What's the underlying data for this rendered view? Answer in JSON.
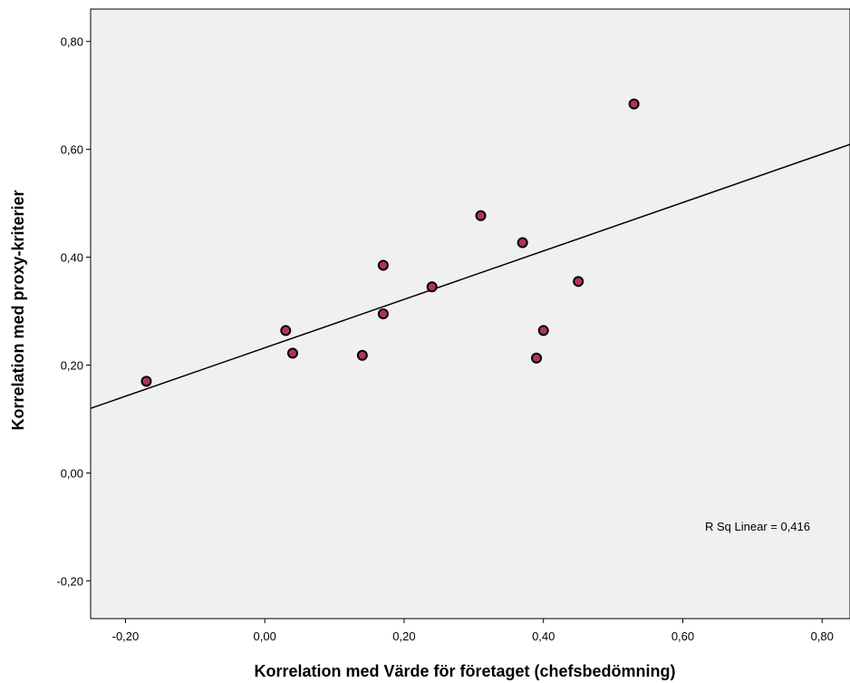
{
  "chart_data": {
    "type": "scatter",
    "xlabel": "Korrelation med Värde för företaget (chefsbedömning)",
    "ylabel": "Korrelation med proxy-kriterier",
    "xlim": [
      -0.25,
      0.84
    ],
    "ylim": [
      -0.27,
      0.86
    ],
    "x_ticks": [
      -0.2,
      0.0,
      0.2,
      0.4,
      0.6,
      0.8
    ],
    "x_tick_labels": [
      "-0,20",
      "0,00",
      "0,20",
      "0,40",
      "0,60",
      "0,80"
    ],
    "y_ticks": [
      -0.2,
      0.0,
      0.2,
      0.4,
      0.6,
      0.8
    ],
    "y_tick_labels": [
      "-0,20",
      "0,00",
      "0,20",
      "0,40",
      "0,60",
      "0,80"
    ],
    "grid": false,
    "plot_background": "#f0f0f0",
    "marker_color": "#b0306a",
    "marker_edge_color": "#000000",
    "points": [
      {
        "x": -0.17,
        "y": 0.17
      },
      {
        "x": 0.03,
        "y": 0.264
      },
      {
        "x": 0.04,
        "y": 0.222
      },
      {
        "x": 0.14,
        "y": 0.218
      },
      {
        "x": 0.17,
        "y": 0.385
      },
      {
        "x": 0.17,
        "y": 0.295
      },
      {
        "x": 0.24,
        "y": 0.345
      },
      {
        "x": 0.31,
        "y": 0.477
      },
      {
        "x": 0.37,
        "y": 0.427
      },
      {
        "x": 0.39,
        "y": 0.213
      },
      {
        "x": 0.4,
        "y": 0.264
      },
      {
        "x": 0.45,
        "y": 0.355
      },
      {
        "x": 0.53,
        "y": 0.684
      }
    ],
    "fit_line": {
      "type": "linear",
      "intercept": 0.232,
      "slope": 0.449
    },
    "annotation": "R Sq Linear = 0,416"
  }
}
